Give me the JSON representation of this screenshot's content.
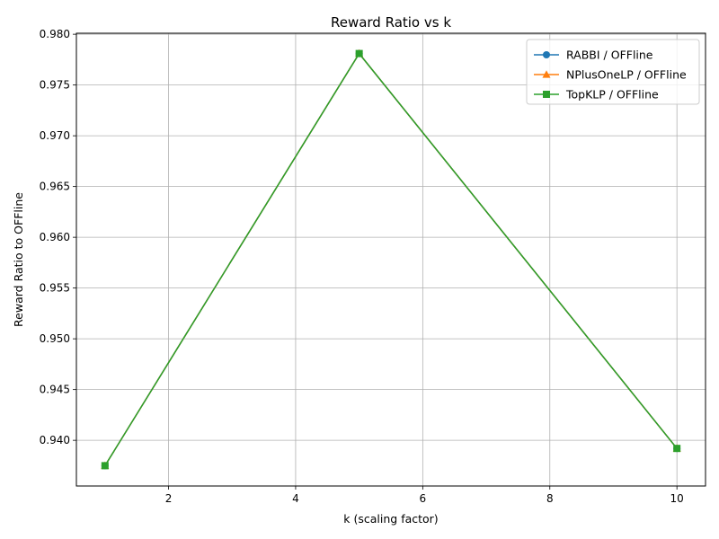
{
  "chart_data": {
    "type": "line",
    "title": "Reward Ratio vs k",
    "xlabel": "k (scaling factor)",
    "ylabel": "Reward Ratio to OFFline",
    "x": [
      1,
      5,
      10
    ],
    "xlim": [
      0.55,
      10.45
    ],
    "ylim": [
      0.9355,
      0.9801
    ],
    "xticks": [
      2,
      4,
      6,
      8,
      10
    ],
    "yticks": [
      0.94,
      0.945,
      0.95,
      0.955,
      0.96,
      0.965,
      0.97,
      0.975,
      0.98
    ],
    "ytick_labels": [
      "0.940",
      "0.945",
      "0.950",
      "0.955",
      "0.960",
      "0.965",
      "0.970",
      "0.975",
      "0.980"
    ],
    "grid": true,
    "legend_position": "top-right",
    "series": [
      {
        "name": "RABBI / OFFline",
        "values": [
          0.9375,
          0.9781,
          0.9392
        ],
        "color": "#1f77b4",
        "marker": "circle"
      },
      {
        "name": "NPlusOneLP / OFFline",
        "values": [
          0.9375,
          0.9781,
          0.9392
        ],
        "color": "#ff7f0e",
        "marker": "triangle"
      },
      {
        "name": "TopKLP / OFFline",
        "values": [
          0.9375,
          0.9781,
          0.9392
        ],
        "color": "#2ca02c",
        "marker": "square"
      }
    ]
  }
}
